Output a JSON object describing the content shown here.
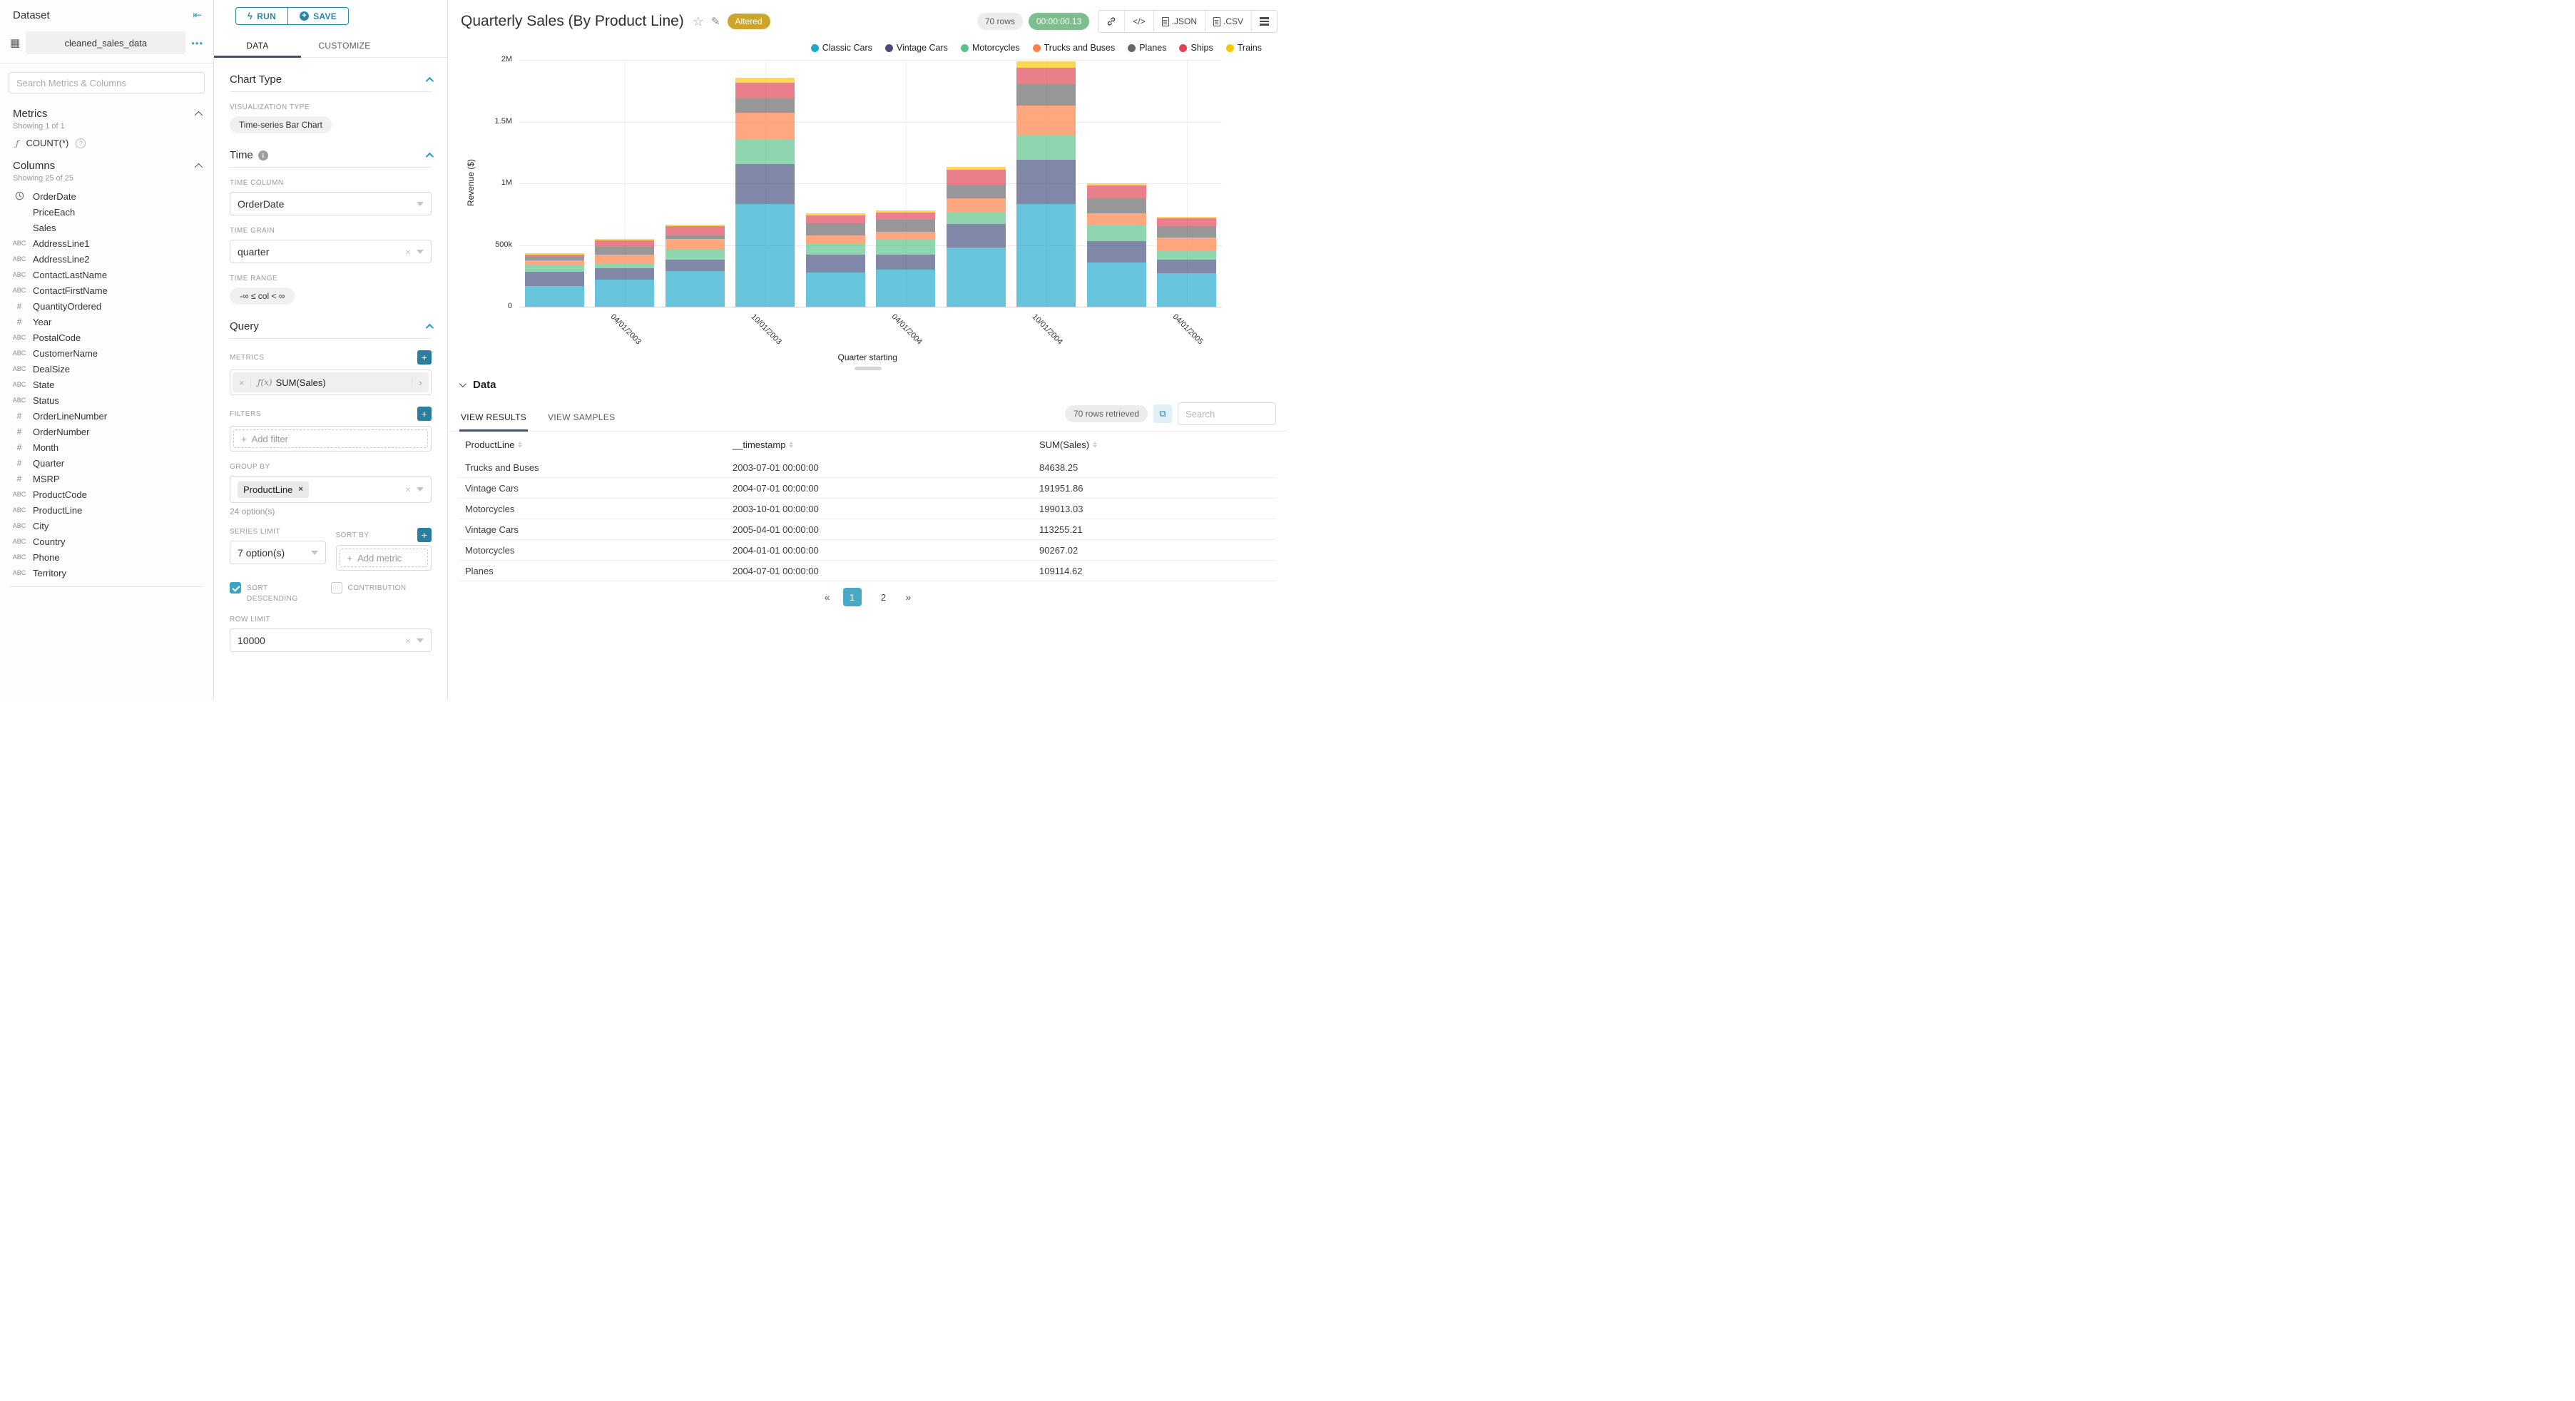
{
  "colors": {
    "accent_teal": "#2a86a5",
    "tab_underline": "#45506b",
    "altered_badge": "#cda42c",
    "timer_green": "#7cbe8e",
    "pagination_active": "#4aa8c7",
    "checkbox_checked": "#3da3c4"
  },
  "sidebar": {
    "title": "Dataset",
    "dataset_name": "cleaned_sales_data",
    "search_placeholder": "Search Metrics & Columns",
    "metrics": {
      "title": "Metrics",
      "showing": "Showing 1 of 1",
      "items": [
        {
          "icon": "function",
          "label": "COUNT(*)"
        }
      ]
    },
    "columns": {
      "title": "Columns",
      "showing": "Showing 25 of 25",
      "items": [
        {
          "type": "time",
          "name": "OrderDate"
        },
        {
          "type": "none",
          "name": "PriceEach"
        },
        {
          "type": "none",
          "name": "Sales"
        },
        {
          "type": "text",
          "name": "AddressLine1"
        },
        {
          "type": "text",
          "name": "AddressLine2"
        },
        {
          "type": "text",
          "name": "ContactLastName"
        },
        {
          "type": "text",
          "name": "ContactFirstName"
        },
        {
          "type": "number",
          "name": "QuantityOrdered"
        },
        {
          "type": "number",
          "name": "Year"
        },
        {
          "type": "text",
          "name": "PostalCode"
        },
        {
          "type": "text",
          "name": "CustomerName"
        },
        {
          "type": "text",
          "name": "DealSize"
        },
        {
          "type": "text",
          "name": "State"
        },
        {
          "type": "text",
          "name": "Status"
        },
        {
          "type": "number",
          "name": "OrderLineNumber"
        },
        {
          "type": "number",
          "name": "OrderNumber"
        },
        {
          "type": "number",
          "name": "Month"
        },
        {
          "type": "number",
          "name": "Quarter"
        },
        {
          "type": "number",
          "name": "MSRP"
        },
        {
          "type": "text",
          "name": "ProductCode"
        },
        {
          "type": "text",
          "name": "ProductLine"
        },
        {
          "type": "text",
          "name": "City"
        },
        {
          "type": "text",
          "name": "Country"
        },
        {
          "type": "text",
          "name": "Phone"
        },
        {
          "type": "text",
          "name": "Territory"
        }
      ]
    }
  },
  "control_panel": {
    "run_label": "RUN",
    "save_label": "SAVE",
    "tabs": {
      "data": "DATA",
      "customize": "CUSTOMIZE"
    },
    "chart_type": {
      "title": "Chart Type",
      "viz_type_label": "VISUALIZATION TYPE",
      "viz_type_value": "Time-series Bar Chart"
    },
    "time": {
      "title": "Time",
      "time_column_label": "TIME COLUMN",
      "time_column_value": "OrderDate",
      "time_grain_label": "TIME GRAIN",
      "time_grain_value": "quarter",
      "time_range_label": "TIME RANGE",
      "time_range_value": "-∞ ≤ col < ∞"
    },
    "query": {
      "title": "Query",
      "metrics_label": "METRICS",
      "metric_fx": "ƒ(x)",
      "metric_value": "SUM(Sales)",
      "filters_label": "FILTERS",
      "add_filter_label": "Add filter",
      "group_by_label": "GROUP BY",
      "group_by_value": "ProductLine",
      "group_by_note": "24 option(s)",
      "series_limit_label": "SERIES LIMIT",
      "series_limit_value": "7 option(s)",
      "sort_by_label": "SORT BY",
      "add_metric_label": "Add metric",
      "sort_descending_label": "SORT DESCENDING",
      "sort_descending_checked": true,
      "contribution_label": "CONTRIBUTION",
      "contribution_checked": false,
      "row_limit_label": "ROW LIMIT",
      "row_limit_value": "10000"
    }
  },
  "header": {
    "title": "Quarterly Sales (By Product Line)",
    "badge": "Altered",
    "rows_pill": "70 rows",
    "timer": "00:00:00.13",
    "code_label": "</>",
    "json_label": ".JSON",
    "csv_label": ".CSV"
  },
  "chart_data": {
    "type": "bar",
    "stacked": true,
    "title": "Quarterly Sales (By Product Line)",
    "xlabel": "Quarter starting",
    "ylabel": "Revenue ($)",
    "ylim": [
      0,
      2000000
    ],
    "grid": true,
    "legend_position": "top-right",
    "yticks": [
      {
        "value": 0,
        "label": "0"
      },
      {
        "value": 500000,
        "label": "500k"
      },
      {
        "value": 1000000,
        "label": "1M"
      },
      {
        "value": 1500000,
        "label": "1.5M"
      },
      {
        "value": 2000000,
        "label": "2M"
      }
    ],
    "categories": [
      "2003-01-01",
      "2003-04-01",
      "2003-07-01",
      "2003-10-01",
      "2004-01-01",
      "2004-04-01",
      "2004-07-01",
      "2004-10-01",
      "2005-01-01",
      "2005-04-01"
    ],
    "x_axis_labels": [
      {
        "index": 1,
        "label": "04/01/2003"
      },
      {
        "index": 3,
        "label": "10/01/2003"
      },
      {
        "index": 5,
        "label": "04/01/2004"
      },
      {
        "index": 7,
        "label": "10/01/2004"
      },
      {
        "index": 9,
        "label": "04/01/2005"
      }
    ],
    "series": [
      {
        "name": "Classic Cars",
        "color": "#1FA8C9",
        "values": [
          170000,
          217000,
          288000,
          833000,
          275000,
          300000,
          480000,
          830000,
          360000,
          270000
        ]
      },
      {
        "name": "Vintage Cars",
        "color": "#454E7C",
        "values": [
          115000,
          93000,
          96000,
          325000,
          145000,
          120000,
          191951.86,
          360000,
          170000,
          113255.21
        ]
      },
      {
        "name": "Motorcycles",
        "color": "#5AC189",
        "values": [
          48000,
          38000,
          79000,
          199013.03,
          90267.02,
          125000,
          90000,
          200000,
          135000,
          75000
        ]
      },
      {
        "name": "Trucks and Buses",
        "color": "#FF7F44",
        "values": [
          41000,
          73000,
          84638.25,
          216000,
          70000,
          60000,
          115000,
          240000,
          90000,
          105000
        ]
      },
      {
        "name": "Planes",
        "color": "#666666",
        "values": [
          30000,
          64000,
          33000,
          112000,
          95000,
          100000,
          109114.62,
          175000,
          125000,
          90000
        ]
      },
      {
        "name": "Ships",
        "color": "#E04355",
        "values": [
          20000,
          52000,
          70000,
          128000,
          65000,
          60000,
          125000,
          130000,
          100000,
          65000
        ]
      },
      {
        "name": "Trains",
        "color": "#FCC700",
        "values": [
          10000,
          15000,
          16000,
          45000,
          17000,
          15000,
          22000,
          55000,
          20000,
          12000
        ]
      }
    ]
  },
  "data_panel": {
    "title": "Data",
    "tab_results": "VIEW RESULTS",
    "tab_samples": "VIEW SAMPLES",
    "rows_retrieved": "70 rows retrieved",
    "search_placeholder": "Search",
    "table": {
      "columns": [
        "ProductLine",
        "__timestamp",
        "SUM(Sales)"
      ],
      "rows": [
        [
          "Trucks and Buses",
          "2003-07-01 00:00:00",
          "84638.25"
        ],
        [
          "Vintage Cars",
          "2004-07-01 00:00:00",
          "191951.86"
        ],
        [
          "Motorcycles",
          "2003-10-01 00:00:00",
          "199013.03"
        ],
        [
          "Vintage Cars",
          "2005-04-01 00:00:00",
          "113255.21"
        ],
        [
          "Motorcycles",
          "2004-01-01 00:00:00",
          "90267.02"
        ],
        [
          "Planes",
          "2004-07-01 00:00:00",
          "109114.62"
        ]
      ]
    },
    "pagination": {
      "prev": "«",
      "pages": [
        "1",
        "2"
      ],
      "active_page": "1",
      "next": "»"
    }
  }
}
